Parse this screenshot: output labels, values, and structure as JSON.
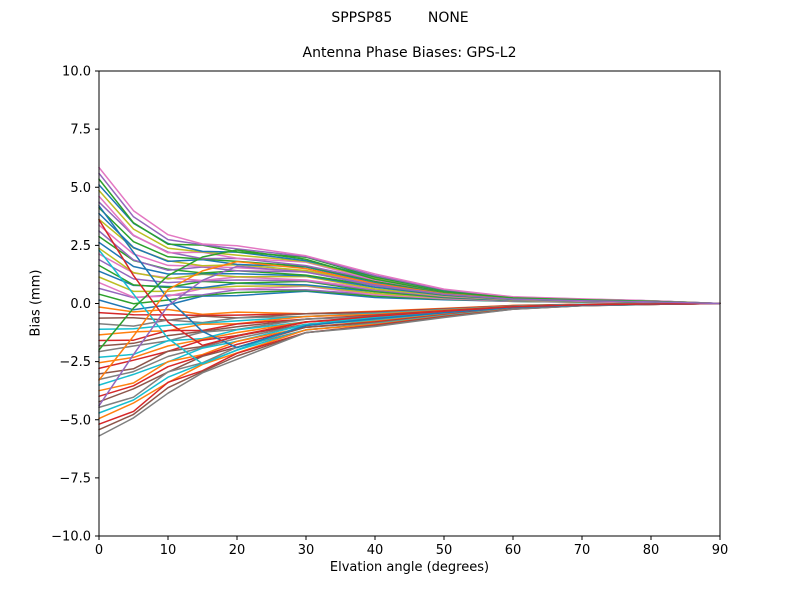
{
  "chart_data": {
    "type": "line",
    "suptitle": "SPPSP85        NONE",
    "title": "Antenna Phase Biases: GPS-L2",
    "xlabel": "Elvation angle (degrees)",
    "ylabel": "Bias (mm)",
    "xlim": [
      0,
      90
    ],
    "ylim": [
      -10,
      10
    ],
    "grid": false,
    "legend": "none",
    "xticks": [
      0,
      10,
      20,
      30,
      40,
      50,
      60,
      70,
      80,
      90
    ],
    "xtick_labels": [
      "0",
      "10",
      "20",
      "30",
      "40",
      "50",
      "60",
      "70",
      "80",
      "90"
    ],
    "yticks": [
      -10,
      -7.5,
      -5,
      -2.5,
      0,
      2.5,
      5,
      7.5,
      10
    ],
    "ytick_labels": [
      "−10.0",
      "−7.5",
      "−5.0",
      "−2.5",
      "0.0",
      "2.5",
      "5.0",
      "7.5",
      "10.0"
    ],
    "palette": [
      "#1f77b4",
      "#ff7f0e",
      "#2ca02c",
      "#d62728",
      "#9467bd",
      "#8c564b",
      "#e377c2",
      "#7f7f7f",
      "#bcbd22",
      "#17becf"
    ],
    "line_width": 1.5,
    "x": [
      0,
      5,
      10,
      15,
      20,
      30,
      40,
      50,
      60,
      70,
      80,
      90
    ],
    "series": [
      {
        "y": [
          0.15,
          -0.27,
          -0.06,
          0.32,
          0.34,
          0.53,
          0.26,
          0.16,
          0.09,
          0.05,
          0.03,
          0
        ]
      },
      {
        "y": [
          -0.15,
          -0.36,
          -0.26,
          -0.47,
          -0.37,
          -0.44,
          -0.33,
          -0.21,
          -0.08,
          -0.03,
          -0.01,
          0
        ]
      },
      {
        "y": [
          0.4,
          -0.01,
          0.15,
          0.35,
          0.47,
          0.56,
          0.32,
          0.18,
          0.09,
          0.06,
          0.04,
          0
        ]
      },
      {
        "y": [
          -0.39,
          -0.48,
          -0.49,
          -0.51,
          -0.5,
          -0.44,
          -0.36,
          -0.23,
          -0.09,
          -0.03,
          -0.01,
          0
        ]
      },
      {
        "y": [
          0.65,
          0.25,
          0.36,
          0.37,
          0.6,
          0.59,
          0.38,
          0.2,
          0.1,
          0.07,
          0.04,
          0
        ]
      },
      {
        "y": [
          -0.63,
          -0.61,
          -0.72,
          -0.54,
          -0.62,
          -0.44,
          -0.39,
          -0.24,
          -0.1,
          -0.04,
          -0.01,
          0
        ]
      },
      {
        "y": [
          0.9,
          0.27,
          0.32,
          0.64,
          0.61,
          0.74,
          0.38,
          0.22,
          0.11,
          0.07,
          0.04,
          0
        ]
      },
      {
        "y": [
          -0.87,
          -0.97,
          -0.71,
          -0.82,
          -0.62,
          -0.56,
          -0.41,
          -0.26,
          -0.11,
          -0.04,
          -0.02,
          0
        ]
      },
      {
        "y": [
          1.14,
          0.52,
          0.52,
          0.66,
          0.74,
          0.77,
          0.44,
          0.24,
          0.12,
          0.08,
          0.05,
          0
        ]
      },
      {
        "y": [
          -1.11,
          -1.09,
          -0.94,
          -0.85,
          -0.75,
          -0.56,
          -0.44,
          -0.28,
          -0.11,
          -0.04,
          -0.02,
          0
        ]
      },
      {
        "y": [
          1.39,
          0.78,
          0.73,
          0.68,
          0.87,
          0.8,
          0.51,
          0.26,
          0.13,
          0.09,
          0.05,
          0
        ]
      },
      {
        "y": [
          -1.35,
          -1.22,
          -1.17,
          -0.89,
          -0.87,
          -0.56,
          -0.47,
          -0.29,
          -0.12,
          -0.05,
          -0.02,
          0
        ]
      },
      {
        "y": [
          1.64,
          0.8,
          0.69,
          0.95,
          0.88,
          0.95,
          0.51,
          0.28,
          0.14,
          0.09,
          0.06,
          0
        ]
      },
      {
        "y": [
          -1.59,
          -1.58,
          -1.16,
          -1.16,
          -0.88,
          -0.67,
          -0.5,
          -0.31,
          -0.13,
          -0.05,
          -0.02,
          0
        ]
      },
      {
        "y": [
          1.89,
          1.06,
          0.9,
          0.97,
          1.01,
          0.98,
          0.57,
          0.3,
          0.15,
          0.1,
          0.06,
          0
        ]
      },
      {
        "y": [
          -1.83,
          -1.71,
          -1.38,
          -1.2,
          -1.0,
          -0.67,
          -0.53,
          -0.33,
          -0.13,
          -0.05,
          -0.02,
          0
        ]
      },
      {
        "y": [
          2.13,
          1.31,
          1.1,
          0.99,
          1.14,
          1.01,
          0.63,
          0.32,
          0.15,
          0.1,
          0.06,
          0
        ]
      },
      {
        "y": [
          -2.07,
          -1.83,
          -1.61,
          -1.23,
          -1.12,
          -0.67,
          -0.56,
          -0.34,
          -0.14,
          -0.05,
          -0.02,
          0
        ]
      },
      {
        "y": [
          2.38,
          1.33,
          1.06,
          1.26,
          1.15,
          1.16,
          0.63,
          0.34,
          0.16,
          0.11,
          0.07,
          0
        ]
      },
      {
        "y": [
          -2.31,
          -2.19,
          -1.6,
          -1.51,
          -1.13,
          -0.79,
          -0.59,
          -0.36,
          -0.15,
          -0.06,
          -0.02,
          0
        ]
      },
      {
        "y": [
          2.63,
          1.59,
          1.27,
          1.28,
          1.28,
          1.19,
          0.7,
          0.36,
          0.17,
          0.12,
          0.07,
          0
        ]
      },
      {
        "y": [
          -2.55,
          -2.32,
          -1.83,
          -1.54,
          -1.25,
          -0.79,
          -0.62,
          -0.38,
          -0.16,
          -0.06,
          -0.03,
          0
        ]
      },
      {
        "y": [
          2.88,
          1.85,
          1.47,
          1.31,
          1.41,
          1.22,
          0.76,
          0.38,
          0.18,
          0.12,
          0.07,
          0
        ]
      },
      {
        "y": [
          -2.79,
          -2.44,
          -2.06,
          -1.58,
          -1.38,
          -0.79,
          -0.64,
          -0.4,
          -0.16,
          -0.06,
          -0.03,
          0
        ]
      },
      {
        "y": [
          3.12,
          1.87,
          1.43,
          1.57,
          1.41,
          1.36,
          0.76,
          0.4,
          0.19,
          0.13,
          0.08,
          0
        ]
      },
      {
        "y": [
          -3.03,
          -2.81,
          -2.05,
          -1.85,
          -1.38,
          -0.9,
          -0.67,
          -0.41,
          -0.17,
          -0.07,
          -0.03,
          0
        ]
      },
      {
        "y": [
          3.37,
          2.13,
          1.64,
          1.6,
          1.54,
          1.39,
          0.82,
          0.42,
          0.2,
          0.13,
          0.08,
          0
        ]
      },
      {
        "y": [
          -3.27,
          -2.93,
          -2.28,
          -1.89,
          -1.5,
          -0.9,
          -0.7,
          -0.43,
          -0.18,
          -0.07,
          -0.03,
          0
        ]
      },
      {
        "y": [
          3.62,
          2.39,
          1.84,
          1.62,
          1.67,
          1.42,
          0.89,
          0.44,
          0.21,
          0.14,
          0.08,
          0
        ]
      },
      {
        "y": [
          -3.51,
          -3.05,
          -2.51,
          -1.92,
          -1.63,
          -0.9,
          -0.73,
          -0.45,
          -0.19,
          -0.07,
          -0.03,
          0
        ]
      },
      {
        "y": [
          3.87,
          2.41,
          1.81,
          1.89,
          1.68,
          1.57,
          0.89,
          0.46,
          0.22,
          0.15,
          0.09,
          0
        ]
      },
      {
        "y": [
          -3.75,
          -3.42,
          -2.5,
          -2.2,
          -1.63,
          -1.02,
          -0.76,
          -0.46,
          -0.19,
          -0.08,
          -0.03,
          0
        ]
      },
      {
        "y": [
          4.11,
          2.66,
          2.01,
          1.91,
          1.81,
          1.6,
          0.95,
          0.48,
          0.22,
          0.15,
          0.09,
          0
        ]
      },
      {
        "y": [
          -3.99,
          -3.54,
          -2.72,
          -2.24,
          -1.76,
          -1.02,
          -0.79,
          -0.48,
          -0.2,
          -0.08,
          -0.03,
          0
        ]
      },
      {
        "y": [
          4.36,
          2.92,
          2.21,
          1.93,
          1.94,
          1.63,
          1.01,
          0.5,
          0.23,
          0.16,
          0.1,
          0
        ]
      },
      {
        "y": [
          -4.23,
          -3.67,
          -2.95,
          -2.27,
          -1.88,
          -1.02,
          -0.82,
          -0.5,
          -0.21,
          -0.08,
          -0.04,
          0
        ]
      },
      {
        "y": [
          4.61,
          2.94,
          2.18,
          2.2,
          1.95,
          1.78,
          1.01,
          0.52,
          0.24,
          0.17,
          0.1,
          0
        ]
      },
      {
        "y": [
          -4.47,
          -4.03,
          -2.94,
          -2.55,
          -1.88,
          -1.14,
          -0.85,
          -0.51,
          -0.21,
          -0.08,
          -0.04,
          0
        ]
      },
      {
        "y": [
          4.86,
          3.2,
          2.38,
          2.22,
          2.08,
          1.81,
          1.08,
          0.54,
          0.25,
          0.17,
          0.1,
          0
        ]
      },
      {
        "y": [
          -4.71,
          -4.15,
          -3.17,
          -2.58,
          -2.01,
          -1.13,
          -0.88,
          -0.53,
          -0.22,
          -0.09,
          -0.04,
          0
        ]
      },
      {
        "y": [
          5.1,
          3.45,
          2.58,
          2.24,
          2.21,
          1.84,
          1.14,
          0.56,
          0.26,
          0.18,
          0.11,
          0
        ]
      },
      {
        "y": [
          -4.95,
          -4.28,
          -3.4,
          -2.62,
          -2.13,
          -1.13,
          -0.9,
          -0.55,
          -0.23,
          -0.09,
          -0.04,
          0
        ]
      },
      {
        "y": [
          5.35,
          3.47,
          2.55,
          2.51,
          2.22,
          1.99,
          1.14,
          0.58,
          0.27,
          0.18,
          0.11,
          0
        ]
      },
      {
        "y": [
          -5.19,
          -4.64,
          -3.39,
          -2.89,
          -2.14,
          -1.25,
          -0.93,
          -0.56,
          -0.24,
          -0.09,
          -0.04,
          0
        ]
      },
      {
        "y": [
          5.6,
          3.73,
          2.75,
          2.53,
          2.35,
          2.02,
          1.2,
          0.6,
          0.28,
          0.19,
          0.11,
          0
        ]
      },
      {
        "y": [
          -5.43,
          -4.77,
          -3.62,
          -2.93,
          -2.26,
          -1.25,
          -0.96,
          -0.58,
          -0.24,
          -0.1,
          -0.04,
          0
        ]
      },
      {
        "y": [
          5.85,
          3.99,
          2.96,
          2.56,
          2.48,
          2.05,
          1.27,
          0.62,
          0.29,
          0.2,
          0.12,
          0
        ]
      },
      {
        "y": [
          -5.7,
          -4.92,
          -3.86,
          -2.98,
          -2.4,
          -1.25,
          -0.99,
          -0.6,
          -0.25,
          -0.1,
          -0.04,
          0
        ]
      },
      {
        "color": "#17becf",
        "y": [
          2.3,
          0.4,
          -1.5,
          -2.6,
          -2.0,
          -0.9,
          -0.6,
          -0.35,
          -0.15,
          -0.06,
          -0.02,
          0
        ]
      },
      {
        "color": "#1f77b4",
        "y": [
          4.2,
          2.2,
          0.2,
          -1.2,
          -1.9,
          -0.95,
          -0.65,
          -0.4,
          -0.17,
          -0.07,
          -0.03,
          0
        ]
      },
      {
        "color": "#ff7f0e",
        "y": [
          -3.3,
          -1.4,
          0.6,
          1.4,
          1.8,
          1.5,
          0.85,
          0.42,
          0.2,
          0.13,
          0.08,
          0
        ]
      },
      {
        "color": "#2ca02c",
        "y": [
          -2.0,
          -0.2,
          1.2,
          2.0,
          2.3,
          1.9,
          1.05,
          0.5,
          0.24,
          0.16,
          0.1,
          0
        ]
      },
      {
        "color": "#d62728",
        "y": [
          3.6,
          1.2,
          -0.8,
          -1.8,
          -1.4,
          -0.8,
          -0.55,
          -0.33,
          -0.14,
          -0.05,
          -0.02,
          0
        ]
      },
      {
        "color": "#9467bd",
        "y": [
          -4.4,
          -2.2,
          -0.1,
          1.0,
          1.6,
          1.35,
          0.8,
          0.4,
          0.19,
          0.12,
          0.07,
          0
        ]
      }
    ]
  }
}
